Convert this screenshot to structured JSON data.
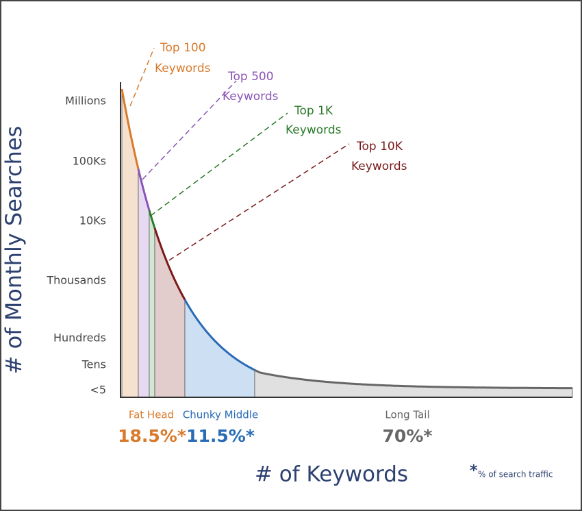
{
  "y_axis": {
    "title": "# of Monthly Searches",
    "labels": [
      "Millions",
      "100Ks",
      "10Ks",
      "Thousands",
      "Hundreds",
      "Tens",
      "<5"
    ]
  },
  "x_axis": {
    "title": "# of Keywords"
  },
  "callouts": [
    {
      "line1": "Top 100",
      "line2": "Keywords"
    },
    {
      "line1": "Top 500",
      "line2": "Keywords"
    },
    {
      "line1": "Top 1K",
      "line2": "Keywords"
    },
    {
      "line1": "Top 10K",
      "line2": "Keywords"
    }
  ],
  "segments": [
    {
      "name": "Fat Head",
      "share": "18.5%*"
    },
    {
      "name": "Chunky Middle",
      "share": "11.5%*"
    },
    {
      "name": "Long Tail",
      "share": "70%*"
    }
  ],
  "footnote": {
    "mark": "*",
    "text": "% of search traffic"
  }
}
